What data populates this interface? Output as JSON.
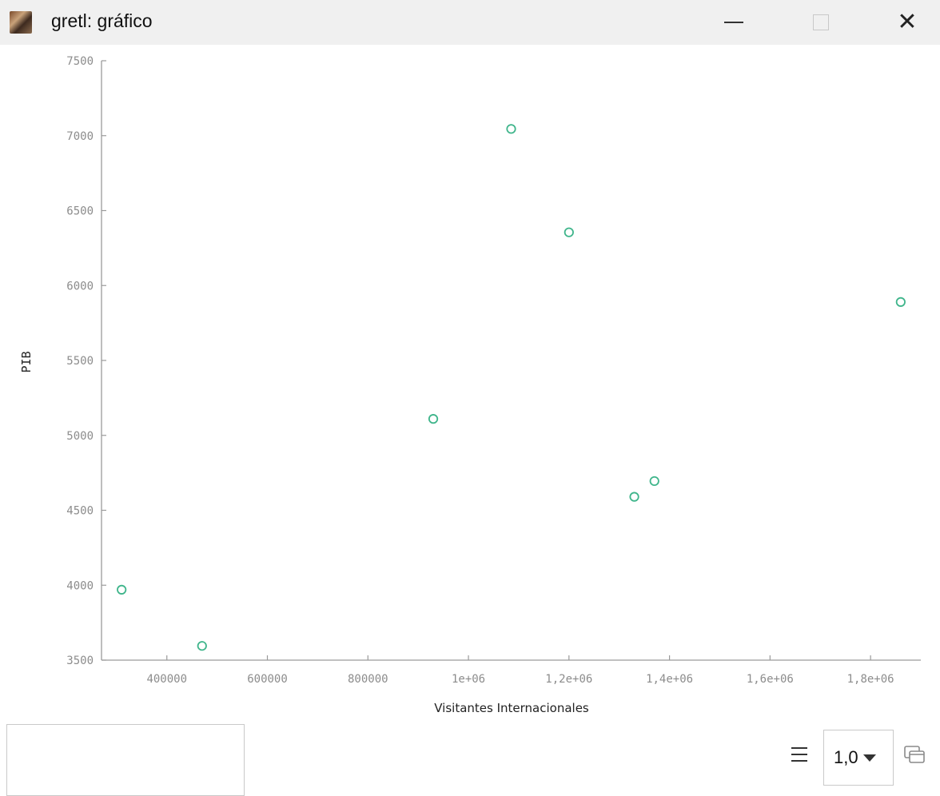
{
  "window": {
    "title": "gretl: gráfico",
    "icon": "gretl-app-icon",
    "controls": {
      "minimize": "minimize-icon",
      "maximize": "maximize-icon",
      "close": "close-icon"
    }
  },
  "chart_data": {
    "type": "scatter",
    "xlabel": "Visitantes Internacionales",
    "ylabel": "PIB",
    "xlim": [
      270000,
      1900000
    ],
    "ylim": [
      3500,
      7500
    ],
    "x_ticks": [
      400000,
      600000,
      800000,
      1000000,
      1200000,
      1400000,
      1600000,
      1800000
    ],
    "x_tick_labels": [
      "400000",
      "600000",
      "800000",
      "1e+06",
      "1,2e+06",
      "1,4e+06",
      "1,6e+06",
      "1,8e+06"
    ],
    "y_ticks": [
      3500,
      4000,
      4500,
      5000,
      5500,
      6000,
      6500,
      7000,
      7500
    ],
    "y_tick_labels": [
      "3500",
      "4000",
      "4500",
      "5000",
      "5500",
      "6000",
      "6500",
      "7000",
      "7500"
    ],
    "marker": "open-circle",
    "marker_color": "#3fb58b",
    "grid": false,
    "points": [
      {
        "x": 310000,
        "y": 3970
      },
      {
        "x": 470000,
        "y": 3595
      },
      {
        "x": 930000,
        "y": 5110
      },
      {
        "x": 1085000,
        "y": 7045
      },
      {
        "x": 1200000,
        "y": 6355
      },
      {
        "x": 1330000,
        "y": 4590
      },
      {
        "x": 1370000,
        "y": 4695
      },
      {
        "x": 1860000,
        "y": 5890
      }
    ]
  },
  "bottombar": {
    "menu_icon": "hamburger-menu-icon",
    "zoom_value": "1,0",
    "zoom_caret_icon": "caret-down-icon",
    "window_icon": "windows-stack-icon"
  }
}
